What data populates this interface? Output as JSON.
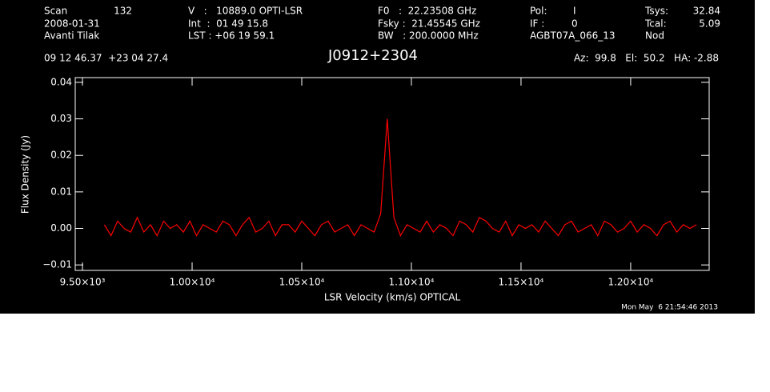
{
  "chart_data": {
    "type": "line",
    "title": "J0912+2304",
    "xlabel": "LSR Velocity (km/s) OPTICAL",
    "ylabel": "Flux Density (Jy)",
    "annotations": [
      "Scan",
      "132",
      "2008-01-31",
      "Avanti Tilak",
      "V   :   10889.0 OPTI-LSR",
      "Int  :  01 49 15.8",
      "LST : +06 19 59.1",
      "F0   :  22.23508 GHz",
      "Fsky :  21.45545 GHz",
      "BW   : 200.0000 MHz",
      "Pol:",
      "I",
      "IF :",
      "0",
      "AGBT07A_066_13",
      "Tsys:",
      "32.84",
      "Tcal:",
      "5.09",
      "Nod",
      "09 12 46.37  +23 04 27.4",
      "Az:  99.8   El:  50.2   HA: -2.88",
      "Mon May  6 21:54:46 2013"
    ],
    "color": "#ff0000",
    "x": [
      9600,
      9630,
      9660,
      9690,
      9720,
      9750,
      9780,
      9810,
      9840,
      9870,
      9900,
      9930,
      9960,
      9990,
      10020,
      10050,
      10080,
      10110,
      10140,
      10170,
      10200,
      10230,
      10260,
      10290,
      10320,
      10350,
      10380,
      10410,
      10440,
      10470,
      10500,
      10530,
      10560,
      10590,
      10620,
      10650,
      10680,
      10710,
      10740,
      10770,
      10800,
      10830,
      10860,
      10890,
      10920,
      10950,
      10980,
      11010,
      11040,
      11070,
      11100,
      11130,
      11160,
      11190,
      11220,
      11250,
      11280,
      11310,
      11340,
      11370,
      11400,
      11430,
      11460,
      11490,
      11520,
      11550,
      11580,
      11610,
      11640,
      11670,
      11700,
      11730,
      11760,
      11790,
      11820,
      11850,
      11880,
      11910,
      11940,
      11970,
      12000,
      12030,
      12060,
      12090,
      12120,
      12150,
      12180,
      12210,
      12240,
      12270,
      12300
    ],
    "values": [
      0.001,
      -0.002,
      0.002,
      0.0,
      -0.001,
      0.003,
      -0.001,
      0.001,
      -0.002,
      0.002,
      0.0,
      0.001,
      -0.001,
      0.002,
      -0.002,
      0.001,
      0.0,
      -0.001,
      0.002,
      0.001,
      -0.002,
      0.001,
      0.003,
      -0.001,
      0.0,
      0.002,
      -0.002,
      0.001,
      0.001,
      -0.001,
      0.002,
      0.0,
      -0.002,
      0.001,
      0.002,
      -0.001,
      0.0,
      0.001,
      -0.002,
      0.001,
      0.0,
      -0.001,
      0.004,
      0.03,
      0.003,
      -0.002,
      0.001,
      0.0,
      -0.001,
      0.002,
      -0.001,
      0.001,
      0.0,
      -0.002,
      0.002,
      0.001,
      -0.001,
      0.003,
      0.002,
      0.0,
      -0.001,
      0.002,
      -0.002,
      0.001,
      0.0,
      0.001,
      -0.001,
      0.002,
      0.0,
      -0.002,
      0.001,
      0.002,
      -0.001,
      0.0,
      0.001,
      -0.002,
      0.002,
      0.001,
      -0.001,
      0.0,
      0.002,
      -0.001,
      0.001,
      0.0,
      -0.002,
      0.001,
      0.002,
      -0.001,
      0.001,
      0.0,
      0.001
    ],
    "xlim": [
      9467,
      12358
    ],
    "xticks": [
      {
        "value": 9500,
        "label": "9.50×10³"
      },
      {
        "value": 10000,
        "label": "1.00×10⁴"
      },
      {
        "value": 10500,
        "label": "1.05×10⁴"
      },
      {
        "value": 11000,
        "label": "1.10×10⁴"
      },
      {
        "value": 11500,
        "label": "1.15×10⁴"
      },
      {
        "value": 12000,
        "label": "1.20×10⁴"
      }
    ],
    "ylim": [
      -0.0115,
      0.0413
    ],
    "yticks": [
      {
        "value": -0.01,
        "label": "−0.01"
      },
      {
        "value": 0,
        "label": "0.00"
      },
      0.01,
      0.02,
      0.03,
      0.04
    ]
  }
}
